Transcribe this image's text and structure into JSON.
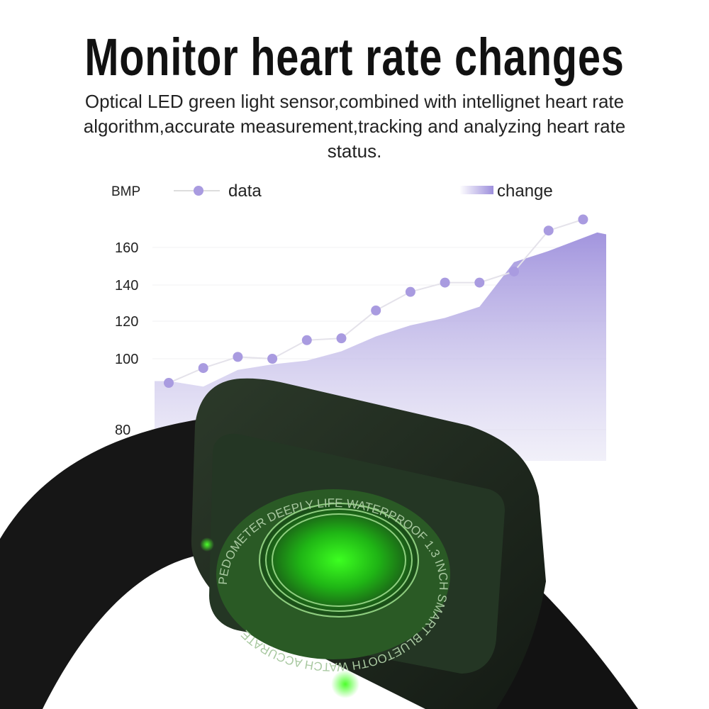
{
  "headline": "Monitor heart rate changes",
  "description": "Optical LED green light sensor,combined with intellignet heart rate algorithm,accurate measurement,tracking and analyzing heart rate status.",
  "chart_data": {
    "type": "line",
    "ylabel": "BMP",
    "y_ticks": [
      "160",
      "140",
      "120",
      "100",
      "80"
    ],
    "ylim": [
      80,
      175
    ],
    "grid": true,
    "legend_placement": "top",
    "series": [
      {
        "name": "data",
        "kind": "line-with-markers",
        "color": "#a99be0",
        "values": [
          87,
          95,
          101,
          100,
          110,
          111,
          126,
          136,
          141,
          141,
          147,
          169,
          175
        ]
      },
      {
        "name": "change",
        "kind": "area",
        "color": "#9d8fdc",
        "values": [
          88,
          85,
          94,
          97,
          99,
          104,
          112,
          118,
          122,
          128,
          152,
          158,
          168
        ]
      }
    ]
  },
  "watch": {
    "engraving": "PEDOMETER DEEPLY LIFE WATERPROOF 1.3 INCH SMART BLUETOOTH WATCH ACCURATE ",
    "sensor_color": "#2fe01e"
  }
}
